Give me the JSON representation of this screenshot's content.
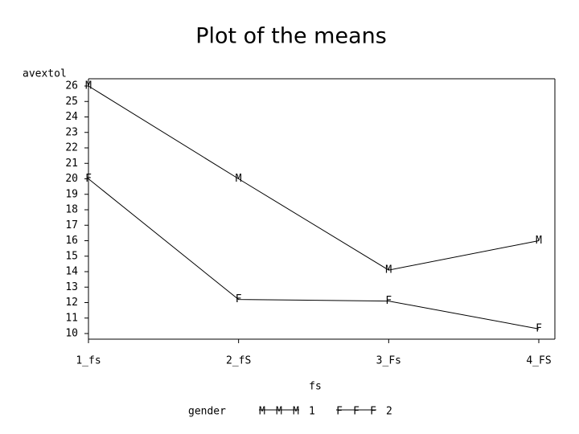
{
  "chart_data": {
    "type": "line",
    "title": "Plot of the means",
    "y_label": "avextol",
    "x_label": "fs",
    "categories": [
      "1_fs",
      "2_fS",
      "3_Fs",
      "4_FS"
    ],
    "series": [
      {
        "name": "1",
        "symbol": "M",
        "color": "#000000",
        "values": [
          26,
          20,
          14.1,
          16
        ]
      },
      {
        "name": "2",
        "symbol": "F",
        "color": "#000000",
        "values": [
          20,
          12.2,
          12.1,
          10.3
        ]
      }
    ],
    "legend_title": "gender",
    "ylim": [
      10,
      26
    ],
    "yticks": [
      10,
      11,
      12,
      13,
      14,
      15,
      16,
      17,
      18,
      19,
      20,
      21,
      22,
      23,
      24,
      25,
      26
    ]
  }
}
